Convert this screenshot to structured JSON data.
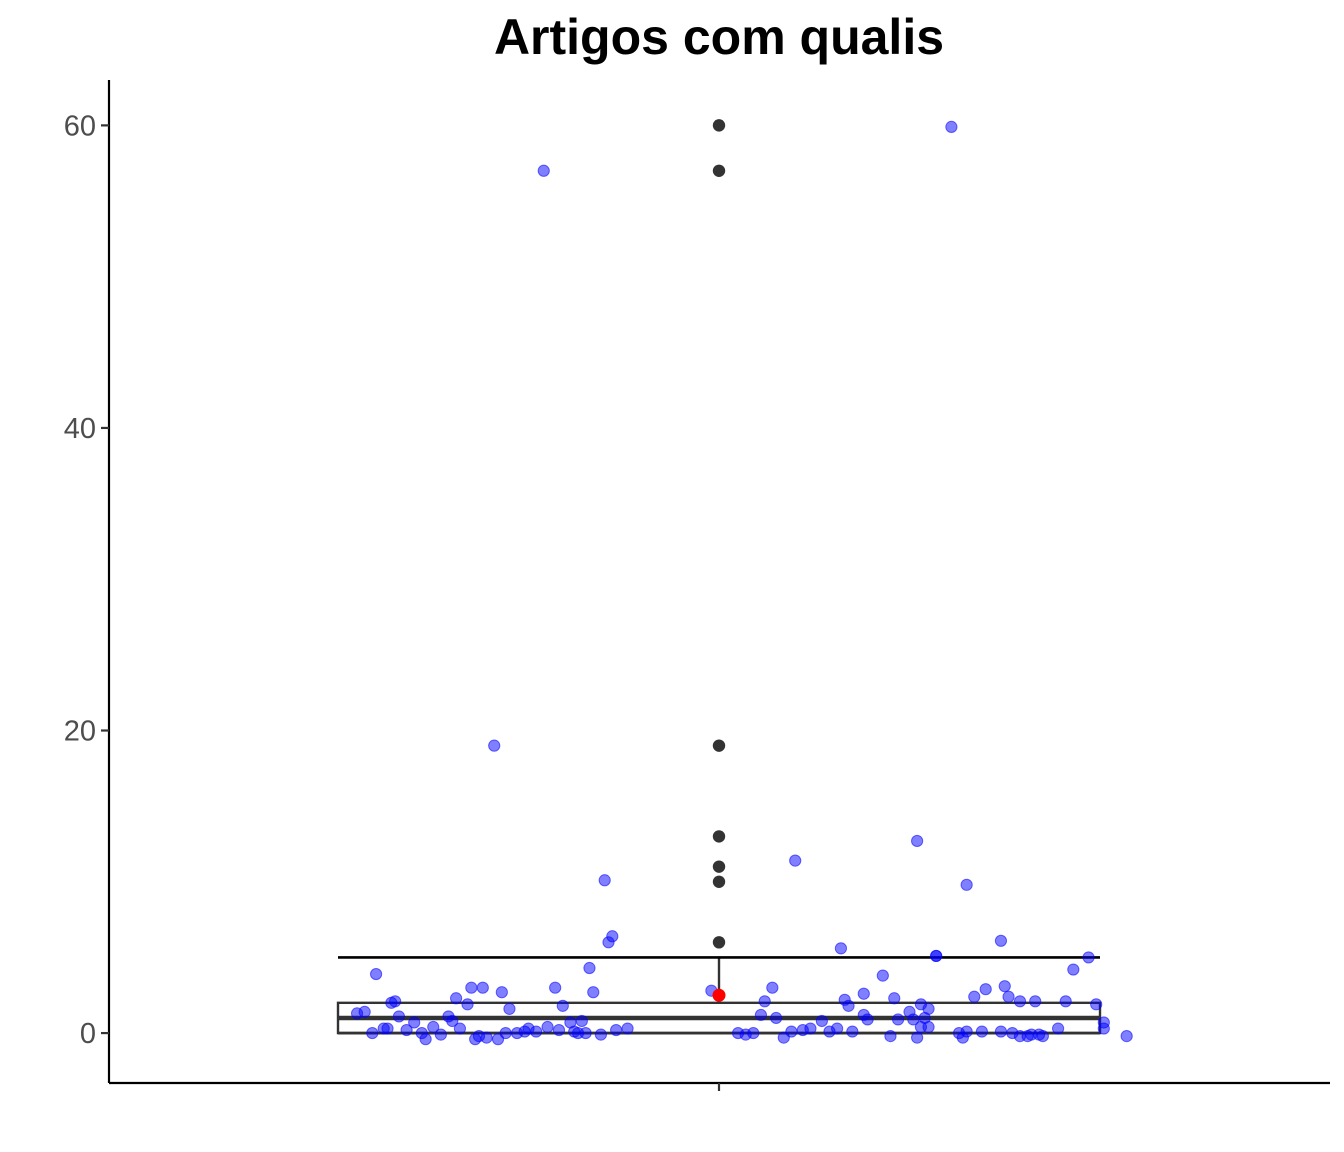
{
  "chart_data": {
    "type": "boxplot",
    "title": "Artigos com qualis",
    "xlabel": "",
    "ylabel": "",
    "ylim": [
      -3.3,
      63
    ],
    "y_ticks": [
      0,
      20,
      40,
      60
    ],
    "x_ticks": [
      ""
    ],
    "grid": false,
    "legend": "none",
    "box": {
      "q1": 0,
      "median": 1,
      "q3": 2,
      "whisker_low": 0,
      "whisker_high": 5,
      "mean": 2.5,
      "outliers": [
        6,
        10,
        11,
        13,
        19,
        57,
        60
      ]
    },
    "jitter_points": [
      {
        "x": -0.95,
        "y": 1.3
      },
      {
        "x": -0.93,
        "y": 1.4
      },
      {
        "x": -0.91,
        "y": 0.0
      },
      {
        "x": -0.9,
        "y": 3.9
      },
      {
        "x": -0.88,
        "y": 0.3
      },
      {
        "x": -0.87,
        "y": 0.3
      },
      {
        "x": -0.86,
        "y": 2.0
      },
      {
        "x": -0.85,
        "y": 2.1
      },
      {
        "x": -0.84,
        "y": 1.1
      },
      {
        "x": -0.82,
        "y": 0.2
      },
      {
        "x": -0.8,
        "y": 0.7
      },
      {
        "x": -0.78,
        "y": 0.0
      },
      {
        "x": -0.77,
        "y": -0.4
      },
      {
        "x": -0.75,
        "y": 0.4
      },
      {
        "x": -0.73,
        "y": -0.1
      },
      {
        "x": -0.71,
        "y": 1.1
      },
      {
        "x": -0.7,
        "y": 0.8
      },
      {
        "x": -0.69,
        "y": 2.3
      },
      {
        "x": -0.68,
        "y": 0.3
      },
      {
        "x": -0.66,
        "y": 1.9
      },
      {
        "x": -0.65,
        "y": 3.0
      },
      {
        "x": -0.64,
        "y": -0.4
      },
      {
        "x": -0.63,
        "y": -0.2
      },
      {
        "x": -0.62,
        "y": 3.0
      },
      {
        "x": -0.61,
        "y": -0.3
      },
      {
        "x": -0.59,
        "y": 19.0
      },
      {
        "x": -0.58,
        "y": -0.4
      },
      {
        "x": -0.57,
        "y": 2.7
      },
      {
        "x": -0.56,
        "y": 0.0
      },
      {
        "x": -0.55,
        "y": 1.6
      },
      {
        "x": -0.53,
        "y": 0.0
      },
      {
        "x": -0.51,
        "y": 0.1
      },
      {
        "x": -0.5,
        "y": 0.3
      },
      {
        "x": -0.48,
        "y": 0.1
      },
      {
        "x": -0.46,
        "y": 57.0
      },
      {
        "x": -0.45,
        "y": 0.4
      },
      {
        "x": -0.43,
        "y": 3.0
      },
      {
        "x": -0.42,
        "y": 0.2
      },
      {
        "x": -0.41,
        "y": 1.8
      },
      {
        "x": -0.39,
        "y": 0.7
      },
      {
        "x": -0.38,
        "y": 0.1
      },
      {
        "x": -0.37,
        "y": 0.0
      },
      {
        "x": -0.36,
        "y": 0.8
      },
      {
        "x": -0.35,
        "y": 0.0
      },
      {
        "x": -0.34,
        "y": 4.3
      },
      {
        "x": -0.33,
        "y": 2.7
      },
      {
        "x": -0.31,
        "y": -0.1
      },
      {
        "x": -0.3,
        "y": 10.1
      },
      {
        "x": -0.29,
        "y": 6.0
      },
      {
        "x": -0.28,
        "y": 6.4
      },
      {
        "x": -0.27,
        "y": 0.2
      },
      {
        "x": -0.24,
        "y": 0.3
      },
      {
        "x": -0.02,
        "y": 2.8
      },
      {
        "x": 0.05,
        "y": 0.0
      },
      {
        "x": 0.07,
        "y": -0.1
      },
      {
        "x": 0.09,
        "y": 0.0
      },
      {
        "x": 0.11,
        "y": 1.2
      },
      {
        "x": 0.12,
        "y": 2.1
      },
      {
        "x": 0.14,
        "y": 3.0
      },
      {
        "x": 0.15,
        "y": 1.0
      },
      {
        "x": 0.17,
        "y": -0.3
      },
      {
        "x": 0.19,
        "y": 0.1
      },
      {
        "x": 0.2,
        "y": 11.4
      },
      {
        "x": 0.22,
        "y": 0.2
      },
      {
        "x": 0.24,
        "y": 0.3
      },
      {
        "x": 0.27,
        "y": 0.8
      },
      {
        "x": 0.29,
        "y": 0.1
      },
      {
        "x": 0.31,
        "y": 0.3
      },
      {
        "x": 0.32,
        "y": 5.6
      },
      {
        "x": 0.33,
        "y": 2.2
      },
      {
        "x": 0.34,
        "y": 1.8
      },
      {
        "x": 0.35,
        "y": 0.1
      },
      {
        "x": 0.38,
        "y": 1.2
      },
      {
        "x": 0.38,
        "y": 2.6
      },
      {
        "x": 0.39,
        "y": 0.9
      },
      {
        "x": 0.43,
        "y": 3.8
      },
      {
        "x": 0.45,
        "y": -0.2
      },
      {
        "x": 0.46,
        "y": 2.3
      },
      {
        "x": 0.47,
        "y": 0.9
      },
      {
        "x": 0.5,
        "y": 1.4
      },
      {
        "x": 0.51,
        "y": 0.9
      },
      {
        "x": 0.52,
        "y": -0.3
      },
      {
        "x": 0.52,
        "y": 12.7
      },
      {
        "x": 0.53,
        "y": 0.4
      },
      {
        "x": 0.53,
        "y": 1.9
      },
      {
        "x": 0.54,
        "y": 1.0
      },
      {
        "x": 0.55,
        "y": 1.6
      },
      {
        "x": 0.55,
        "y": 0.4
      },
      {
        "x": 0.57,
        "y": 5.1
      },
      {
        "x": 0.57,
        "y": 5.1
      },
      {
        "x": 0.61,
        "y": 59.9
      },
      {
        "x": 0.63,
        "y": 0.0
      },
      {
        "x": 0.64,
        "y": -0.3
      },
      {
        "x": 0.65,
        "y": 0.1
      },
      {
        "x": 0.65,
        "y": 9.8
      },
      {
        "x": 0.67,
        "y": 2.4
      },
      {
        "x": 0.69,
        "y": 0.1
      },
      {
        "x": 0.7,
        "y": 2.9
      },
      {
        "x": 0.74,
        "y": 0.1
      },
      {
        "x": 0.74,
        "y": 6.1
      },
      {
        "x": 0.75,
        "y": 3.1
      },
      {
        "x": 0.76,
        "y": 2.4
      },
      {
        "x": 0.77,
        "y": 0.0
      },
      {
        "x": 0.79,
        "y": -0.2
      },
      {
        "x": 0.79,
        "y": 2.1
      },
      {
        "x": 0.81,
        "y": -0.2
      },
      {
        "x": 0.82,
        "y": -0.1
      },
      {
        "x": 0.83,
        "y": 2.1
      },
      {
        "x": 0.84,
        "y": -0.1
      },
      {
        "x": 0.85,
        "y": -0.2
      },
      {
        "x": 0.89,
        "y": 0.3
      },
      {
        "x": 0.91,
        "y": 2.1
      },
      {
        "x": 0.93,
        "y": 4.2
      },
      {
        "x": 0.97,
        "y": 5.0
      },
      {
        "x": 0.99,
        "y": 1.9
      },
      {
        "x": 1.01,
        "y": 0.7
      },
      {
        "x": 1.01,
        "y": 0.3
      },
      {
        "x": 1.07,
        "y": -0.2
      }
    ],
    "colors": {
      "jitter": "#0000ff",
      "outlier": "#333333",
      "mean": "#ff0000",
      "box": "#333333"
    }
  }
}
